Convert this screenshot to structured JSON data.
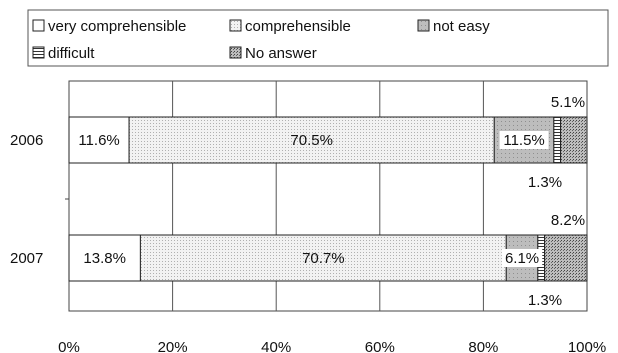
{
  "chart_data": {
    "type": "bar",
    "orientation": "horizontal",
    "stacked": true,
    "percent": true,
    "title": "",
    "xlabel": "",
    "ylabel": "",
    "xlim": [
      0,
      100
    ],
    "xticks": [
      "0%",
      "20%",
      "40%",
      "60%",
      "80%",
      "100%"
    ],
    "grid": true,
    "legend_position": "top",
    "categories": [
      "2006",
      "2007"
    ],
    "series": [
      {
        "name": "very comprehensible",
        "values": [
          11.6,
          13.8
        ],
        "labels": [
          "11.6%",
          "13.8%"
        ],
        "pattern": "white",
        "color": "#ffffff"
      },
      {
        "name": "comprehensible",
        "values": [
          70.5,
          70.7
        ],
        "labels": [
          "70.5%",
          "70.7%"
        ],
        "pattern": "light-dots",
        "color": "#e6e6e6"
      },
      {
        "name": "not easy",
        "values": [
          11.5,
          6.1
        ],
        "labels": [
          "11.5%",
          "6.1%"
        ],
        "pattern": "gray",
        "color": "#b4b4b4"
      },
      {
        "name": "difficult",
        "values": [
          1.3,
          1.3
        ],
        "labels": [
          "1.3%",
          "1.3%"
        ],
        "pattern": "horizontal-lines",
        "color": "#777777"
      },
      {
        "name": "No answer",
        "values": [
          5.1,
          8.2
        ],
        "labels": [
          "5.1%",
          "8.2%"
        ],
        "pattern": "dark-dots",
        "color": "#9a9a9a"
      }
    ]
  }
}
